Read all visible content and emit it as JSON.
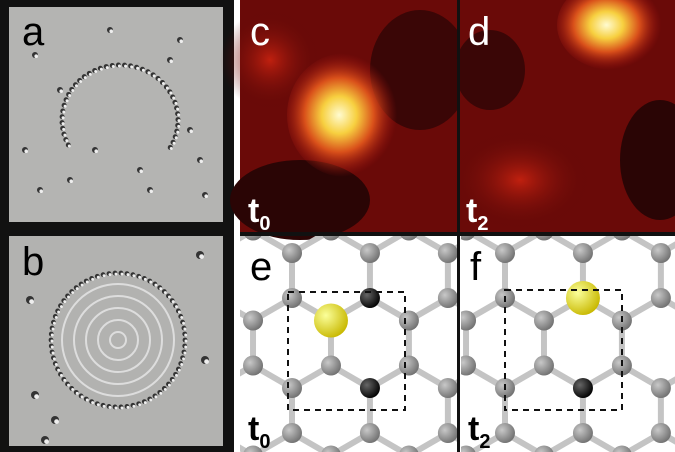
{
  "panels": [
    {
      "label": "a"
    },
    {
      "label": "b"
    },
    {
      "label": "c",
      "time": {
        "base": "t",
        "sub": "0"
      }
    },
    {
      "label": "d",
      "time": {
        "base": "t",
        "sub": "2"
      }
    },
    {
      "label": "e",
      "time": {
        "base": "t",
        "sub": "0"
      }
    },
    {
      "label": "f",
      "time": {
        "base": "t",
        "sub": "2"
      }
    }
  ]
}
